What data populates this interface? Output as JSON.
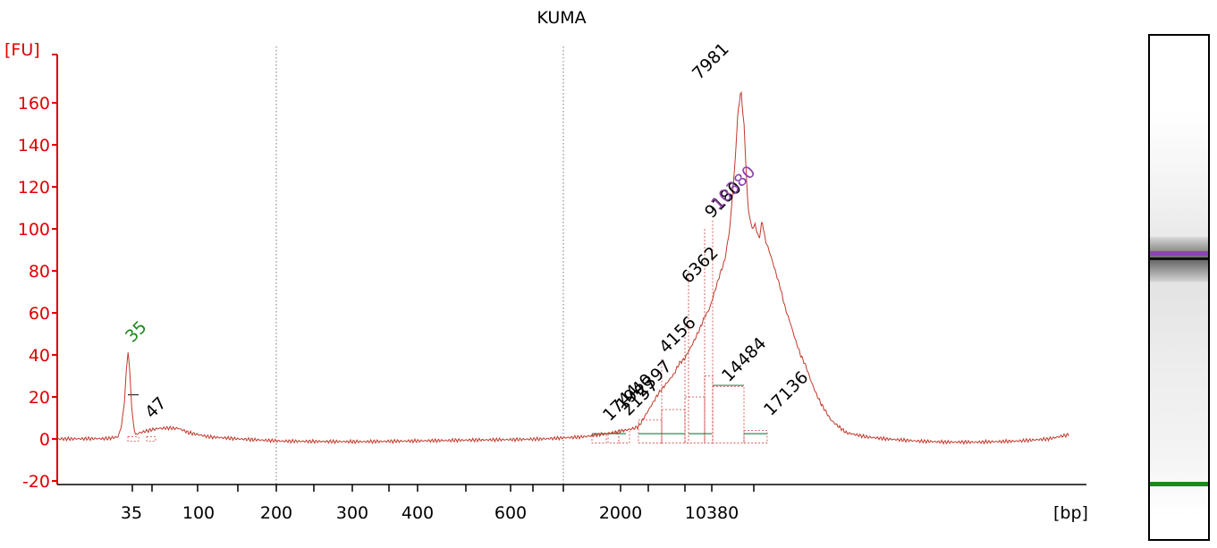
{
  "chart_data": {
    "type": "line",
    "title": "KUMA",
    "ylabel": "[FU]",
    "xlabel": "[bp]",
    "ylim": [
      -20,
      170
    ],
    "yticks": [
      -20,
      0,
      20,
      40,
      60,
      80,
      100,
      120,
      140,
      160
    ],
    "yticklabels": [
      "-20",
      "0",
      "20",
      "40",
      "60",
      "80",
      "100",
      "120",
      "140",
      "160"
    ],
    "xticks": [
      "35",
      "100",
      "200",
      "300",
      "400",
      "600",
      "2000",
      "10380"
    ],
    "grid": false,
    "colors": {
      "axis": "#e00000",
      "trace": "#c0392b",
      "marker_green": "#1a8a1a",
      "marker_purple": "#8e44ad",
      "peak_label": "#000000",
      "baseline": "#2e8b57"
    },
    "peak_labels": [
      {
        "text": "35",
        "color": "green"
      },
      {
        "text": "47",
        "color": "black"
      },
      {
        "text": "1744",
        "color": "black"
      },
      {
        "text": "1940",
        "color": "black"
      },
      {
        "text": "2157",
        "color": "black"
      },
      {
        "text": "2397",
        "color": "black"
      },
      {
        "text": "4156",
        "color": "black"
      },
      {
        "text": "6362",
        "color": "black"
      },
      {
        "text": "7981",
        "color": "black"
      },
      {
        "text": "9180",
        "color": "black"
      },
      {
        "text": "10380",
        "color": "purple"
      },
      {
        "text": "14484",
        "color": "black"
      },
      {
        "text": "17136",
        "color": "black"
      }
    ],
    "trace_points": [
      [
        0,
        0.0
      ],
      [
        3,
        0.1
      ],
      [
        5,
        0.2
      ],
      [
        6,
        1.0
      ],
      [
        6.3,
        5.0
      ],
      [
        6.6,
        15.0
      ],
      [
        6.8,
        30.0
      ],
      [
        7.0,
        42.0
      ],
      [
        7.2,
        30.0
      ],
      [
        7.4,
        12.0
      ],
      [
        7.7,
        2.0
      ],
      [
        8.2,
        3.0
      ],
      [
        9,
        4.0
      ],
      [
        10,
        5.0
      ],
      [
        11,
        5.2
      ],
      [
        12,
        5.0
      ],
      [
        13,
        3.0
      ],
      [
        15,
        1.0
      ],
      [
        18,
        0.0
      ],
      [
        22,
        -1.0
      ],
      [
        25,
        -1.2
      ],
      [
        30,
        -1.3
      ],
      [
        35,
        -1.0
      ],
      [
        40,
        -0.6
      ],
      [
        45,
        -0.3
      ],
      [
        48,
        0.0
      ],
      [
        50,
        0.5
      ],
      [
        52,
        1.0
      ],
      [
        53.5,
        2.0
      ],
      [
        55,
        3.0
      ],
      [
        56,
        4.0
      ],
      [
        57,
        5.0
      ],
      [
        57.5,
        6.0
      ],
      [
        58,
        10.0
      ],
      [
        58.5,
        14.0
      ],
      [
        59,
        18.0
      ],
      [
        59.5,
        22.0
      ],
      [
        60,
        25.0
      ],
      [
        61,
        31.0
      ],
      [
        61.5,
        36.0
      ],
      [
        62,
        38.0
      ],
      [
        62.8,
        45.0
      ],
      [
        63.5,
        52.0
      ],
      [
        64,
        58.0
      ],
      [
        64.5,
        62.0
      ],
      [
        65,
        70.0
      ],
      [
        65.5,
        78.0
      ],
      [
        66,
        85.0
      ],
      [
        66.5,
        100.0
      ],
      [
        67,
        130.0
      ],
      [
        67.3,
        155.0
      ],
      [
        67.6,
        166.0
      ],
      [
        67.9,
        150.0
      ],
      [
        68.3,
        110.0
      ],
      [
        68.7,
        100.0
      ],
      [
        69,
        102.0
      ],
      [
        69.4,
        95.0
      ],
      [
        69.7,
        104.0
      ],
      [
        70,
        95.0
      ],
      [
        70.5,
        88.0
      ],
      [
        71,
        80.0
      ],
      [
        71.5,
        72.0
      ],
      [
        72,
        62.0
      ],
      [
        72.5,
        55.0
      ],
      [
        73,
        47.0
      ],
      [
        73.5,
        40.0
      ],
      [
        74,
        35.0
      ],
      [
        74.5,
        28.0
      ],
      [
        75,
        22.0
      ],
      [
        75.5,
        17.0
      ],
      [
        76,
        13.0
      ],
      [
        76.5,
        9.0
      ],
      [
        77,
        7.0
      ],
      [
        77.5,
        5.0
      ],
      [
        78,
        3.0
      ],
      [
        79,
        2.0
      ],
      [
        80,
        1.0
      ],
      [
        82,
        0.0
      ],
      [
        85,
        -1.0
      ],
      [
        88,
        -1.5
      ],
      [
        91,
        -1.5
      ],
      [
        95,
        -1.0
      ],
      [
        98,
        0.0
      ],
      [
        99,
        1.0
      ],
      [
        100,
        2.0
      ]
    ]
  }
}
